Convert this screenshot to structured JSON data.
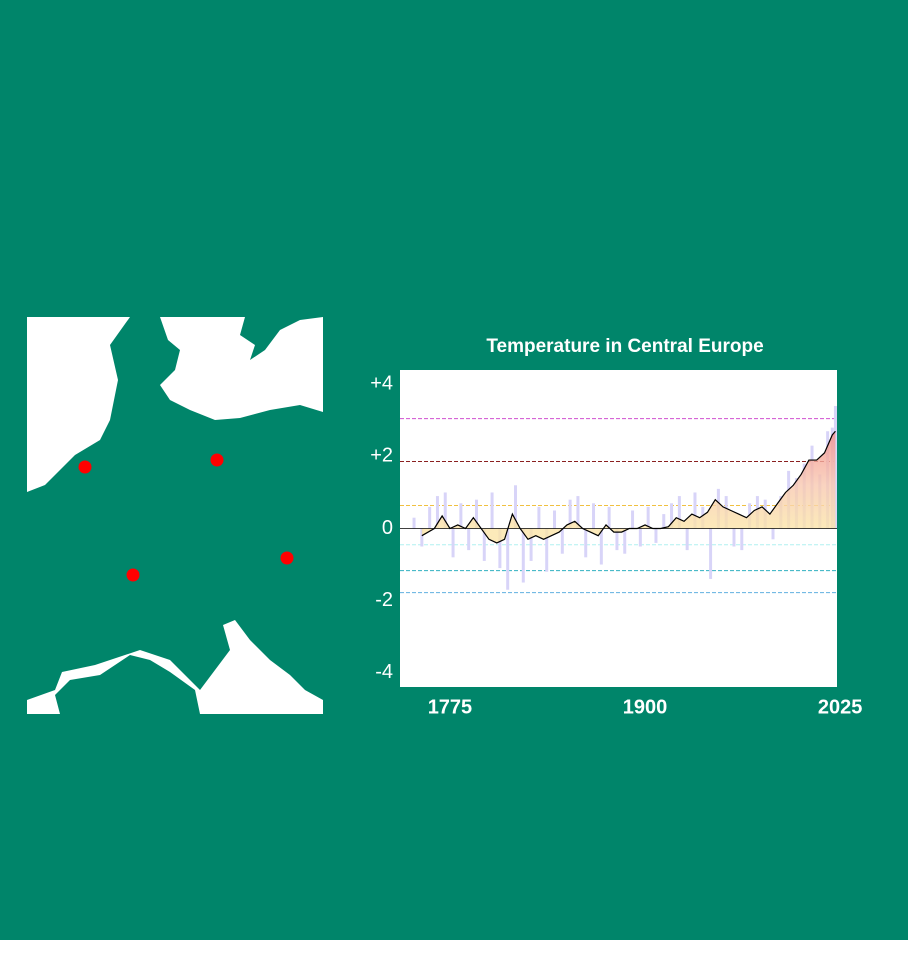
{
  "chart_data": {
    "type": "bar_line",
    "title": "Temperature in Central Europe",
    "xlim": [
      1743,
      2023
    ],
    "xticks": [
      1775,
      1900,
      2025
    ],
    "ylim": [
      -4.4,
      4.4
    ],
    "yticks": [
      {
        "value": 4,
        "label": "+4"
      },
      {
        "value": 2,
        "label": "+2"
      },
      0,
      -2,
      -4
    ],
    "reference_lines": [
      {
        "value": 3.05,
        "color": "#d050d0"
      },
      {
        "value": 1.86,
        "color": "#8b2020"
      },
      {
        "value": 0.64,
        "color": "#f0c040"
      },
      {
        "value": -0.45,
        "color": "#b0f0f0"
      },
      {
        "value": -1.17,
        "color": "#30b0c0"
      },
      {
        "value": -1.78,
        "color": "#60b0e0"
      }
    ],
    "bars": {
      "color": "#d8d4f8",
      "x": [
        1752,
        1757,
        1762,
        1767,
        1772,
        1777,
        1782,
        1787,
        1792,
        1797,
        1802,
        1807,
        1812,
        1817,
        1822,
        1827,
        1832,
        1837,
        1842,
        1847,
        1852,
        1857,
        1862,
        1867,
        1872,
        1877,
        1882,
        1887,
        1892,
        1897,
        1902,
        1907,
        1912,
        1917,
        1922,
        1927,
        1932,
        1937,
        1942,
        1947,
        1952,
        1957,
        1962,
        1967,
        1972,
        1977,
        1982,
        1987,
        1992,
        1997,
        2002,
        2007,
        2012,
        2017,
        2020,
        2022
      ],
      "values": [
        0.3,
        -0.5,
        0.6,
        0.9,
        1.0,
        -0.8,
        0.7,
        -0.6,
        0.8,
        -0.9,
        1.0,
        -1.1,
        -1.7,
        1.2,
        -1.5,
        -0.9,
        0.6,
        -1.2,
        0.5,
        -0.7,
        0.8,
        0.9,
        -0.8,
        0.7,
        -1.0,
        0.6,
        -0.6,
        -0.7,
        0.5,
        -0.5,
        0.6,
        -0.4,
        0.4,
        0.7,
        0.9,
        -0.6,
        1.0,
        0.6,
        -1.4,
        1.1,
        0.9,
        -0.5,
        -0.6,
        0.7,
        0.9,
        0.8,
        -0.3,
        0.9,
        1.6,
        1.4,
        1.8,
        2.3,
        1.5,
        2.7,
        2.8,
        3.4
      ]
    },
    "line": {
      "color": "#000000",
      "x": [
        1757,
        1765,
        1770,
        1775,
        1780,
        1785,
        1790,
        1795,
        1800,
        1805,
        1810,
        1815,
        1820,
        1825,
        1830,
        1835,
        1840,
        1845,
        1850,
        1855,
        1860,
        1865,
        1870,
        1875,
        1880,
        1885,
        1890,
        1895,
        1900,
        1905,
        1910,
        1915,
        1920,
        1925,
        1930,
        1935,
        1940,
        1945,
        1950,
        1955,
        1960,
        1965,
        1970,
        1975,
        1980,
        1985,
        1990,
        1995,
        2000,
        2005,
        2010,
        2015,
        2020,
        2022
      ],
      "values": [
        -0.2,
        0.0,
        0.35,
        0.0,
        0.1,
        0.0,
        0.3,
        0.0,
        -0.3,
        -0.4,
        -0.3,
        0.4,
        0.0,
        -0.3,
        -0.2,
        -0.3,
        -0.2,
        -0.1,
        0.1,
        0.2,
        0.0,
        -0.1,
        -0.2,
        0.1,
        -0.1,
        -0.1,
        0.0,
        0.0,
        0.1,
        0.0,
        0.0,
        0.05,
        0.3,
        0.2,
        0.4,
        0.3,
        0.45,
        0.8,
        0.6,
        0.5,
        0.4,
        0.3,
        0.5,
        0.6,
        0.4,
        0.7,
        1.0,
        1.2,
        1.5,
        1.9,
        1.9,
        2.1,
        2.6,
        2.7
      ]
    }
  }
}
